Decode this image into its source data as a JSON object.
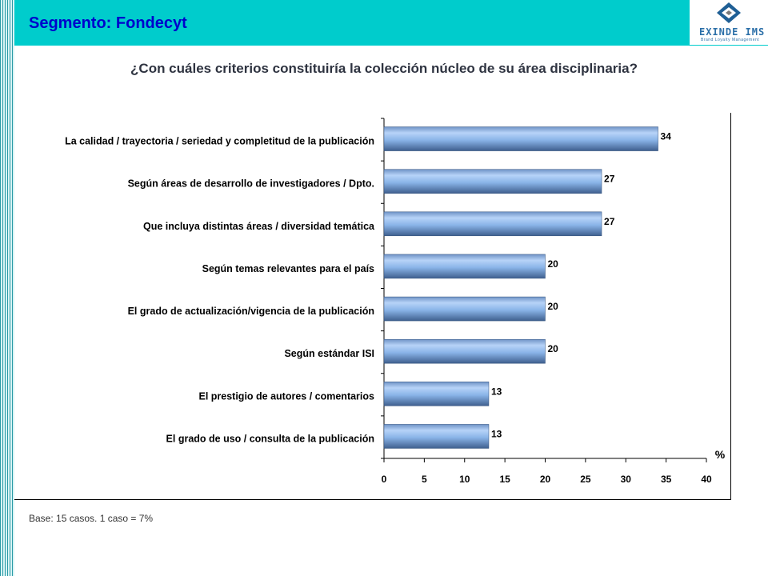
{
  "header": {
    "segment_title": "Segmento: Fondecyt",
    "logo_text": "EXINDE IMS",
    "logo_subtext": "Brand Loyalty Management"
  },
  "question": "¿Con cuáles criterios constituiría la colección núcleo de su área disciplinaria?",
  "footnote": "Base: 15 casos.  1 caso = 7%",
  "colors": {
    "header_band": "#00cccc",
    "title_text": "#0000cc",
    "bar_fill": "#8ab4e8"
  },
  "chart_data": {
    "type": "bar",
    "orientation": "horizontal",
    "categories": [
      "La calidad / trayectoria / seriedad y completitud de la publicación",
      "Según áreas de desarrollo de investigadores / Dpto.",
      "Que incluya distintas áreas / diversidad temática",
      "Según temas relevantes para el país",
      "El grado de actualización/vigencia de la publicación",
      "Según estándar ISI",
      "El prestigio de autores / comentarios",
      "El grado de uso / consulta de la publicación"
    ],
    "values": [
      34,
      27,
      27,
      20,
      20,
      20,
      13,
      13
    ],
    "x_ticks": [
      "0",
      "5",
      "10",
      "15",
      "20",
      "25",
      "30",
      "35",
      "40"
    ],
    "xlim": [
      0,
      40
    ],
    "unit_label": "%",
    "grid": false,
    "legend": "none"
  }
}
